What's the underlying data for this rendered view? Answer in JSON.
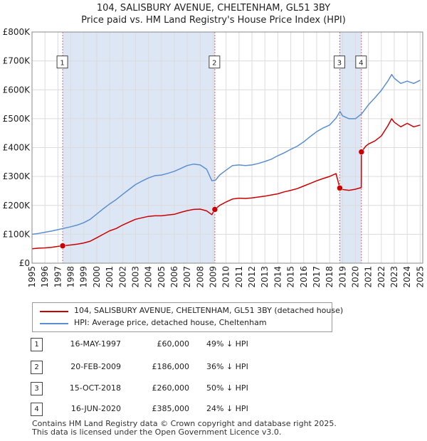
{
  "header": {
    "title": "104, SALISBURY AVENUE, CHELTENHAM, GL51 3BY",
    "subtitle": "Price paid vs. HM Land Registry's House Price Index (HPI)"
  },
  "legend": {
    "items": [
      {
        "label": "104, SALISBURY AVENUE, CHELTENHAM, GL51 3BY (detached house)",
        "color": "#cc0000"
      },
      {
        "label": "HPI: Average price, detached house, Cheltenham",
        "color": "#5b8fd0"
      }
    ]
  },
  "transactions": [
    {
      "num": "1",
      "date": "16-MAY-1997",
      "price": "£60,000",
      "hpi": "49% ↓ HPI"
    },
    {
      "num": "2",
      "date": "20-FEB-2009",
      "price": "£186,000",
      "hpi": "36% ↓ HPI"
    },
    {
      "num": "3",
      "date": "15-OCT-2018",
      "price": "£260,000",
      "hpi": "50% ↓ HPI"
    },
    {
      "num": "4",
      "date": "16-JUN-2020",
      "price": "£385,000",
      "hpi": "24% ↓ HPI"
    }
  ],
  "footer": {
    "line1": "Contains HM Land Registry data © Crown copyright and database right 2025.",
    "line2": "This data is licensed under the Open Government Licence v3.0."
  },
  "colors": {
    "price_line": "#cc0000",
    "hpi_line": "#5b8fd0",
    "shade": "#dde6f5",
    "vline": "#e06666"
  },
  "chart_data": {
    "type": "line",
    "title": "104, SALISBURY AVENUE, CHELTENHAM, GL51 3BY",
    "subtitle": "Price paid vs. HM Land Registry's House Price Index (HPI)",
    "xlabel": "",
    "ylabel": "",
    "xlim": [
      1995,
      2025.2
    ],
    "ylim": [
      0,
      800000
    ],
    "x_ticks": [
      1995,
      1996,
      1997,
      1998,
      1999,
      2000,
      2001,
      2002,
      2003,
      2004,
      2005,
      2006,
      2007,
      2008,
      2009,
      2010,
      2011,
      2012,
      2013,
      2014,
      2015,
      2016,
      2017,
      2018,
      2019,
      2020,
      2021,
      2022,
      2023,
      2024,
      2025
    ],
    "x_tick_labels": [
      "1995",
      "1996",
      "1997",
      "1998",
      "1999",
      "2000",
      "2001",
      "2002",
      "2003",
      "2004",
      "2005",
      "2006",
      "2007",
      "2008",
      "2009",
      "2010",
      "2011",
      "2012",
      "2013",
      "2014",
      "2015",
      "2016",
      "2017",
      "2018",
      "2019",
      "2020",
      "2021",
      "2022",
      "2023",
      "2024",
      "2025"
    ],
    "y_ticks": [
      0,
      100000,
      200000,
      300000,
      400000,
      500000,
      600000,
      700000,
      800000
    ],
    "y_tick_labels": [
      "£0",
      "£100K",
      "£200K",
      "£300K",
      "£400K",
      "£500K",
      "£600K",
      "£700K",
      "£800K"
    ],
    "grid": true,
    "shaded_ranges": [
      [
        1997.37,
        2009.13
      ],
      [
        2018.79,
        2020.46
      ]
    ],
    "markers": [
      {
        "label": "1",
        "x": 1997.37,
        "y": 60000,
        "box_y": 695000
      },
      {
        "label": "2",
        "x": 2009.13,
        "y": 186000,
        "box_y": 695000
      },
      {
        "label": "3",
        "x": 2018.79,
        "y": 260000,
        "box_y": 695000
      },
      {
        "label": "4",
        "x": 2020.46,
        "y": 385000,
        "box_y": 695000
      }
    ],
    "series": [
      {
        "name": "104, SALISBURY AVENUE, CHELTENHAM, GL51 3BY (detached house)",
        "x": [
          1995,
          1995.5,
          1996,
          1996.5,
          1997,
          1997.37,
          1998,
          1998.5,
          1999,
          1999.5,
          2000,
          2000.5,
          2001,
          2001.5,
          2002,
          2002.5,
          2003,
          2003.5,
          2004,
          2004.5,
          2005,
          2005.5,
          2006,
          2006.5,
          2007,
          2007.5,
          2008,
          2008.5,
          2008.9,
          2009.13,
          2009.5,
          2010,
          2010.5,
          2011,
          2011.5,
          2012,
          2012.5,
          2013,
          2013.5,
          2014,
          2014.5,
          2015,
          2015.5,
          2016,
          2016.5,
          2017,
          2017.5,
          2018,
          2018.5,
          2018.79,
          2019,
          2019.5,
          2020,
          2020.45,
          2020.46,
          2020.8,
          2021,
          2021.5,
          2022,
          2022.5,
          2022.8,
          2023,
          2023.5,
          2024,
          2024.5,
          2025
        ],
        "values": [
          50000,
          52000,
          53000,
          55000,
          58000,
          60000,
          63000,
          66000,
          70000,
          76000,
          88000,
          100000,
          112000,
          120000,
          132000,
          142000,
          152000,
          157000,
          162000,
          164000,
          164000,
          167000,
          169000,
          176000,
          182000,
          186000,
          187000,
          181000,
          168000,
          186000,
          200000,
          212000,
          222000,
          225000,
          224000,
          226000,
          229000,
          232000,
          236000,
          240000,
          247000,
          252000,
          258000,
          267000,
          276000,
          285000,
          293000,
          300000,
          310000,
          260000,
          255000,
          252000,
          256000,
          262000,
          385000,
          405000,
          412000,
          423000,
          440000,
          475000,
          500000,
          488000,
          472000,
          484000,
          472000,
          478000
        ]
      },
      {
        "name": "HPI: Average price, detached house, Cheltenham",
        "x": [
          1995,
          1995.5,
          1996,
          1996.5,
          1997,
          1997.5,
          1998,
          1998.5,
          1999,
          1999.5,
          2000,
          2000.5,
          2001,
          2001.5,
          2002,
          2002.5,
          2003,
          2003.5,
          2004,
          2004.5,
          2005,
          2005.5,
          2006,
          2006.5,
          2007,
          2007.5,
          2008,
          2008.5,
          2008.9,
          2009.2,
          2009.5,
          2010,
          2010.5,
          2011,
          2011.5,
          2012,
          2012.5,
          2013,
          2013.5,
          2014,
          2014.5,
          2015,
          2015.5,
          2016,
          2016.5,
          2017,
          2017.5,
          2018,
          2018.5,
          2018.8,
          2019,
          2019.5,
          2020,
          2020.5,
          2021,
          2021.5,
          2022,
          2022.5,
          2022.8,
          2023,
          2023.5,
          2024,
          2024.5,
          2025
        ],
        "values": [
          100000,
          103000,
          107000,
          111000,
          116000,
          121000,
          126000,
          132000,
          140000,
          152000,
          170000,
          188000,
          205000,
          220000,
          238000,
          255000,
          272000,
          284000,
          295000,
          303000,
          305000,
          311000,
          318000,
          328000,
          338000,
          343000,
          340000,
          325000,
          285000,
          288000,
          305000,
          322000,
          338000,
          340000,
          338000,
          340000,
          345000,
          352000,
          360000,
          372000,
          382000,
          394000,
          405000,
          420000,
          438000,
          455000,
          468000,
          478000,
          502000,
          525000,
          510000,
          500000,
          500000,
          518000,
          548000,
          572000,
          598000,
          630000,
          653000,
          640000,
          622000,
          630000,
          622000,
          633000
        ]
      }
    ]
  }
}
